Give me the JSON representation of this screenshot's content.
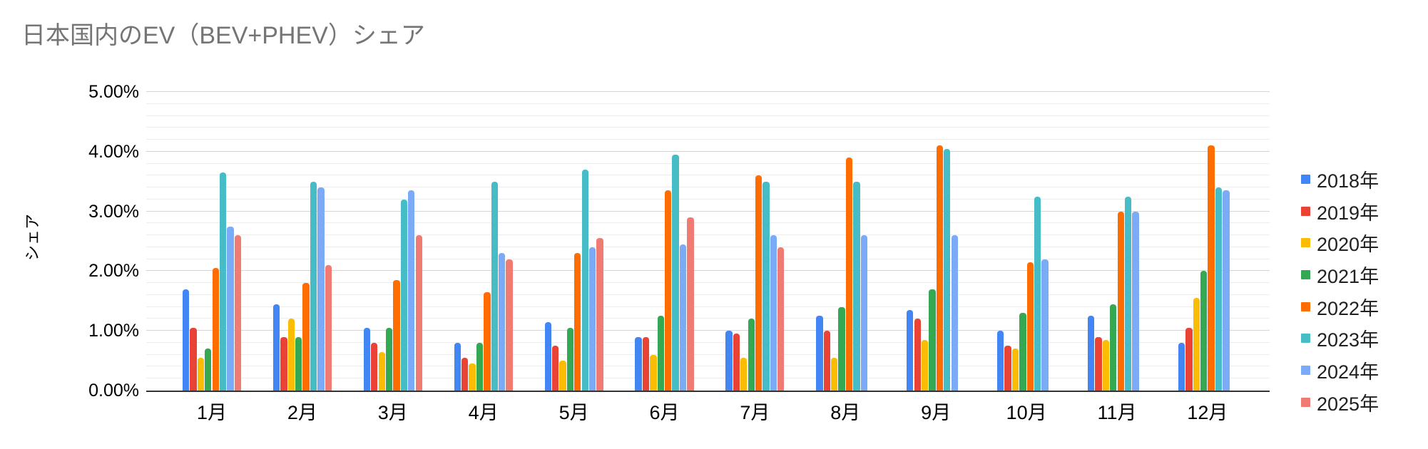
{
  "chart_data": {
    "type": "bar",
    "title": "日本国内のEV（BEV+PHEV）シェア",
    "xlabel": "",
    "ylabel": "シェア",
    "ylim": [
      0,
      5
    ],
    "y_ticks": [
      "0.00%",
      "1.00%",
      "2.00%",
      "3.00%",
      "4.00%",
      "5.00%"
    ],
    "y_major_step": 1.0,
    "y_minor_step": 0.2,
    "grid": true,
    "legend_position": "right",
    "categories": [
      "1月",
      "2月",
      "3月",
      "4月",
      "5月",
      "6月",
      "7月",
      "8月",
      "9月",
      "10月",
      "11月",
      "12月"
    ],
    "series": [
      {
        "name": "2018年",
        "color": "#4285F4",
        "values": [
          1.7,
          1.45,
          1.05,
          0.8,
          1.15,
          0.9,
          1.0,
          1.25,
          1.35,
          1.0,
          1.25,
          0.8
        ]
      },
      {
        "name": "2019年",
        "color": "#EA4335",
        "values": [
          1.05,
          0.9,
          0.8,
          0.55,
          0.75,
          0.9,
          0.95,
          1.0,
          1.2,
          0.75,
          0.9,
          1.05
        ]
      },
      {
        "name": "2020年",
        "color": "#FBBC04",
        "values": [
          0.55,
          1.2,
          0.65,
          0.45,
          0.5,
          0.6,
          0.55,
          0.55,
          0.85,
          0.7,
          0.85,
          1.55
        ]
      },
      {
        "name": "2021年",
        "color": "#34A853",
        "values": [
          0.7,
          0.9,
          1.05,
          0.8,
          1.05,
          1.25,
          1.2,
          1.4,
          1.7,
          1.3,
          1.45,
          2.0
        ]
      },
      {
        "name": "2022年",
        "color": "#FF6D01",
        "values": [
          2.05,
          1.8,
          1.85,
          1.65,
          2.3,
          3.35,
          3.6,
          3.9,
          4.1,
          2.15,
          3.0,
          4.1
        ]
      },
      {
        "name": "2023年",
        "color": "#46BDC6",
        "values": [
          3.65,
          3.5,
          3.2,
          3.5,
          3.7,
          3.95,
          3.5,
          3.5,
          4.05,
          3.25,
          3.25,
          3.4
        ]
      },
      {
        "name": "2024年",
        "color": "#7BAAF7",
        "values": [
          2.75,
          3.4,
          3.35,
          2.3,
          2.4,
          2.45,
          2.6,
          2.6,
          2.6,
          2.2,
          3.0,
          3.35
        ]
      },
      {
        "name": "2025年",
        "color": "#F07B72",
        "values": [
          2.6,
          2.1,
          2.6,
          2.2,
          2.55,
          2.9,
          2.4,
          null,
          null,
          null,
          null,
          null
        ]
      }
    ],
    "colors": {
      "title_text": "#757575",
      "axis_line": "#333333",
      "major_grid": "#d6d6d6",
      "minor_grid": "#ececec",
      "tick_text": "#000000"
    }
  }
}
